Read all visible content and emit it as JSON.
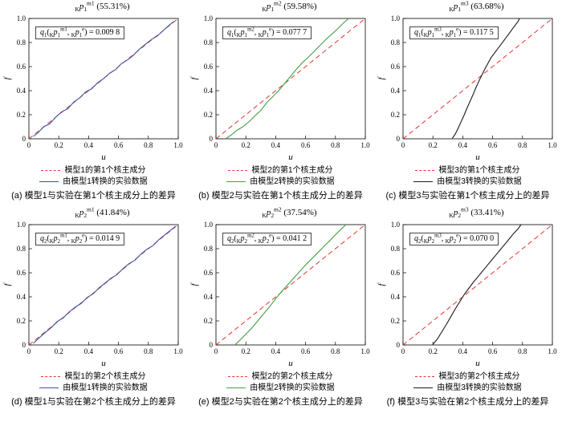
{
  "colors": {
    "reference_red": "#e5352b",
    "model1_blue": "#3a53a4",
    "model2_green": "#43a047",
    "model3_black": "#1a1a1a",
    "axis": "#000000"
  },
  "chart_data": [
    {
      "id": "a",
      "type": "line",
      "title_segments": [
        [
          "K",
          "sub"
        ],
        [
          "p",
          "i"
        ],
        [
          "1",
          "sub"
        ],
        [
          "m1",
          "sup"
        ],
        [
          " (55.31%)"
        ]
      ],
      "annotation_segments": [
        [
          "q",
          "i"
        ],
        [
          "1",
          "sub"
        ],
        [
          "("
        ],
        [
          "K",
          "sub"
        ],
        [
          "p",
          "i"
        ],
        [
          "1",
          "sub"
        ],
        [
          "m1",
          "sup"
        ],
        [
          ", "
        ],
        [
          "K",
          "sub"
        ],
        [
          "p",
          "i"
        ],
        [
          "1",
          "sub"
        ],
        [
          "e",
          "sup"
        ],
        [
          ") = 0.009 8"
        ]
      ],
      "xlabel": "u",
      "ylabel": "f",
      "xlim": [
        0,
        1
      ],
      "ylim": [
        0,
        1
      ],
      "ticks": [
        0,
        0.2,
        0.4,
        0.6,
        0.8,
        1
      ],
      "tick_labels": [
        "0",
        "0.2",
        "0.4",
        "0.6",
        "0.8",
        "1.0"
      ],
      "reference": {
        "name": "模型1的第1个核主成分",
        "color": "#e5352b",
        "dashed": true,
        "points": [
          [
            0,
            0
          ],
          [
            1,
            1
          ]
        ]
      },
      "series": {
        "name": "由模型1转换的实验数据",
        "color": "#3a53a4",
        "dashed": false,
        "points": [
          [
            0.03,
            0.02
          ],
          [
            0.06,
            0.05
          ],
          [
            0.1,
            0.1
          ],
          [
            0.14,
            0.125
          ],
          [
            0.18,
            0.18
          ],
          [
            0.22,
            0.225
          ],
          [
            0.26,
            0.25
          ],
          [
            0.3,
            0.305
          ],
          [
            0.34,
            0.34
          ],
          [
            0.38,
            0.39
          ],
          [
            0.42,
            0.415
          ],
          [
            0.46,
            0.465
          ],
          [
            0.5,
            0.5
          ],
          [
            0.54,
            0.545
          ],
          [
            0.58,
            0.575
          ],
          [
            0.62,
            0.625
          ],
          [
            0.66,
            0.655
          ],
          [
            0.7,
            0.695
          ],
          [
            0.74,
            0.745
          ],
          [
            0.78,
            0.785
          ],
          [
            0.82,
            0.825
          ],
          [
            0.86,
            0.855
          ],
          [
            0.9,
            0.9
          ],
          [
            0.94,
            0.945
          ],
          [
            0.97,
            0.975
          ]
        ]
      },
      "caption": "(a) 模型1与实验在第1个核主成分上的差异"
    },
    {
      "id": "b",
      "type": "line",
      "title_segments": [
        [
          "K",
          "sub"
        ],
        [
          "p",
          "i"
        ],
        [
          "1",
          "sub"
        ],
        [
          "m2",
          "sup"
        ],
        [
          " (59.58%)"
        ]
      ],
      "annotation_segments": [
        [
          "q",
          "i"
        ],
        [
          "1",
          "sub"
        ],
        [
          "("
        ],
        [
          "K",
          "sub"
        ],
        [
          "p",
          "i"
        ],
        [
          "1",
          "sub"
        ],
        [
          "m2",
          "sup"
        ],
        [
          ", "
        ],
        [
          "K",
          "sub"
        ],
        [
          "p",
          "i"
        ],
        [
          "1",
          "sub"
        ],
        [
          "e",
          "sup"
        ],
        [
          ") = 0.077 7"
        ]
      ],
      "xlabel": "u",
      "ylabel": "f",
      "xlim": [
        0,
        1
      ],
      "ylim": [
        0,
        1
      ],
      "ticks": [
        0,
        0.2,
        0.4,
        0.6,
        0.8,
        1
      ],
      "tick_labels": [
        "0",
        "0.2",
        "0.4",
        "0.6",
        "0.8",
        "1.0"
      ],
      "reference": {
        "name": "模型2的第1个核主成分",
        "color": "#e5352b",
        "dashed": true,
        "points": [
          [
            0,
            0
          ],
          [
            1,
            1
          ]
        ]
      },
      "series": {
        "name": "由模型2转换的实验数据",
        "color": "#43a047",
        "dashed": false,
        "points": [
          [
            0.07,
            0.005
          ],
          [
            0.1,
            0.03
          ],
          [
            0.14,
            0.07
          ],
          [
            0.18,
            0.1
          ],
          [
            0.22,
            0.14
          ],
          [
            0.26,
            0.19
          ],
          [
            0.3,
            0.235
          ],
          [
            0.34,
            0.3
          ],
          [
            0.38,
            0.35
          ],
          [
            0.42,
            0.4
          ],
          [
            0.46,
            0.46
          ],
          [
            0.5,
            0.52
          ],
          [
            0.54,
            0.58
          ],
          [
            0.58,
            0.635
          ],
          [
            0.62,
            0.68
          ],
          [
            0.66,
            0.73
          ],
          [
            0.7,
            0.78
          ],
          [
            0.74,
            0.83
          ],
          [
            0.78,
            0.875
          ],
          [
            0.82,
            0.92
          ],
          [
            0.86,
            0.97
          ],
          [
            0.89,
            1.0
          ]
        ]
      },
      "caption": "(b) 模型2与实验在第1个核主成分上的差异"
    },
    {
      "id": "c",
      "type": "line",
      "title_segments": [
        [
          "K",
          "sub"
        ],
        [
          "p",
          "i"
        ],
        [
          "1",
          "sub"
        ],
        [
          "m3",
          "sup"
        ],
        [
          " (63.68%)"
        ]
      ],
      "annotation_segments": [
        [
          "q",
          "i"
        ],
        [
          "1",
          "sub"
        ],
        [
          "("
        ],
        [
          "K",
          "sub"
        ],
        [
          "p",
          "i"
        ],
        [
          "1",
          "sub"
        ],
        [
          "m3",
          "sup"
        ],
        [
          ", "
        ],
        [
          "K",
          "sub"
        ],
        [
          "p",
          "i"
        ],
        [
          "1",
          "sub"
        ],
        [
          "e",
          "sup"
        ],
        [
          ") = 0.117 5"
        ]
      ],
      "xlabel": "u",
      "ylabel": "f",
      "xlim": [
        0,
        1
      ],
      "ylim": [
        0,
        1
      ],
      "ticks": [
        0,
        0.2,
        0.4,
        0.6,
        0.8,
        1
      ],
      "tick_labels": [
        "0",
        "0.2",
        "0.4",
        "0.6",
        "0.8",
        "1.0"
      ],
      "reference": {
        "name": "模型3的第1个核主成分",
        "color": "#e5352b",
        "dashed": true,
        "points": [
          [
            0,
            0
          ],
          [
            1,
            1
          ]
        ]
      },
      "series": {
        "name": "由模型3转换的实验数据",
        "color": "#1a1a1a",
        "dashed": false,
        "points": [
          [
            0.33,
            0.005
          ],
          [
            0.35,
            0.04
          ],
          [
            0.37,
            0.09
          ],
          [
            0.39,
            0.145
          ],
          [
            0.41,
            0.2
          ],
          [
            0.43,
            0.26
          ],
          [
            0.45,
            0.315
          ],
          [
            0.47,
            0.37
          ],
          [
            0.49,
            0.43
          ],
          [
            0.51,
            0.485
          ],
          [
            0.53,
            0.535
          ],
          [
            0.55,
            0.585
          ],
          [
            0.57,
            0.63
          ],
          [
            0.59,
            0.675
          ],
          [
            0.62,
            0.725
          ],
          [
            0.65,
            0.775
          ],
          [
            0.68,
            0.825
          ],
          [
            0.71,
            0.875
          ],
          [
            0.74,
            0.925
          ],
          [
            0.77,
            0.975
          ],
          [
            0.78,
            1.0
          ]
        ]
      },
      "caption": "(c) 模型3与实验在第1个核主成分上的差异"
    },
    {
      "id": "d",
      "type": "line",
      "title_segments": [
        [
          "K",
          "sub"
        ],
        [
          "p",
          "i"
        ],
        [
          "2",
          "sub"
        ],
        [
          "m1",
          "sup"
        ],
        [
          " (41.84%)"
        ]
      ],
      "annotation_segments": [
        [
          "q",
          "i"
        ],
        [
          "2",
          "sub"
        ],
        [
          "("
        ],
        [
          "K",
          "sub"
        ],
        [
          "p",
          "i"
        ],
        [
          "2",
          "sub"
        ],
        [
          "m1",
          "sup"
        ],
        [
          ", "
        ],
        [
          "K",
          "sub"
        ],
        [
          "p",
          "i"
        ],
        [
          "2",
          "sub"
        ],
        [
          "e",
          "sup"
        ],
        [
          ") = 0.014 9"
        ]
      ],
      "xlabel": "u",
      "ylabel": "f",
      "xlim": [
        0,
        1
      ],
      "ylim": [
        0,
        1
      ],
      "ticks": [
        0,
        0.2,
        0.4,
        0.6,
        0.8,
        1
      ],
      "tick_labels": [
        "0",
        "0.2",
        "0.4",
        "0.6",
        "0.8",
        "1.0"
      ],
      "reference": {
        "name": "模型1的第2个核主成分",
        "color": "#e5352b",
        "dashed": true,
        "points": [
          [
            0,
            0
          ],
          [
            1,
            1
          ]
        ]
      },
      "series": {
        "name": "由模型1转换的实验数据",
        "color": "#3a53a4",
        "dashed": false,
        "points": [
          [
            0.03,
            0.015
          ],
          [
            0.07,
            0.06
          ],
          [
            0.11,
            0.105
          ],
          [
            0.15,
            0.145
          ],
          [
            0.19,
            0.195
          ],
          [
            0.23,
            0.225
          ],
          [
            0.27,
            0.275
          ],
          [
            0.31,
            0.315
          ],
          [
            0.35,
            0.345
          ],
          [
            0.39,
            0.395
          ],
          [
            0.43,
            0.425
          ],
          [
            0.47,
            0.475
          ],
          [
            0.51,
            0.515
          ],
          [
            0.55,
            0.555
          ],
          [
            0.59,
            0.585
          ],
          [
            0.63,
            0.635
          ],
          [
            0.67,
            0.675
          ],
          [
            0.71,
            0.705
          ],
          [
            0.75,
            0.755
          ],
          [
            0.79,
            0.795
          ],
          [
            0.83,
            0.825
          ],
          [
            0.87,
            0.875
          ],
          [
            0.91,
            0.915
          ],
          [
            0.95,
            0.955
          ],
          [
            0.98,
            0.985
          ]
        ]
      },
      "caption": "(d) 模型1与实验在第2个核主成分上的差异"
    },
    {
      "id": "e",
      "type": "line",
      "title_segments": [
        [
          "K",
          "sub"
        ],
        [
          "p",
          "i"
        ],
        [
          "2",
          "sub"
        ],
        [
          "m2",
          "sup"
        ],
        [
          " (37.54%)"
        ]
      ],
      "annotation_segments": [
        [
          "q",
          "i"
        ],
        [
          "2",
          "sub"
        ],
        [
          "("
        ],
        [
          "K",
          "sub"
        ],
        [
          "p",
          "i"
        ],
        [
          "2",
          "sub"
        ],
        [
          "m2",
          "sup"
        ],
        [
          ", "
        ],
        [
          "K",
          "sub"
        ],
        [
          "p",
          "i"
        ],
        [
          "2",
          "sub"
        ],
        [
          "e",
          "sup"
        ],
        [
          ") = 0.041 2"
        ]
      ],
      "xlabel": "u",
      "ylabel": "f",
      "xlim": [
        0,
        1
      ],
      "ylim": [
        0,
        1
      ],
      "ticks": [
        0,
        0.2,
        0.4,
        0.6,
        0.8,
        1
      ],
      "tick_labels": [
        "0",
        "0.2",
        "0.4",
        "0.6",
        "0.8",
        "1.0"
      ],
      "reference": {
        "name": "模型2的第2个核主成分",
        "color": "#e5352b",
        "dashed": true,
        "points": [
          [
            0,
            0
          ],
          [
            1,
            1
          ]
        ]
      },
      "series": {
        "name": "由模型2转换的实验数据",
        "color": "#43a047",
        "dashed": false,
        "points": [
          [
            0.13,
            0.005
          ],
          [
            0.16,
            0.04
          ],
          [
            0.2,
            0.09
          ],
          [
            0.24,
            0.14
          ],
          [
            0.28,
            0.2
          ],
          [
            0.32,
            0.26
          ],
          [
            0.36,
            0.32
          ],
          [
            0.4,
            0.385
          ],
          [
            0.44,
            0.445
          ],
          [
            0.48,
            0.5
          ],
          [
            0.52,
            0.555
          ],
          [
            0.56,
            0.61
          ],
          [
            0.6,
            0.665
          ],
          [
            0.64,
            0.715
          ],
          [
            0.68,
            0.765
          ],
          [
            0.72,
            0.815
          ],
          [
            0.76,
            0.865
          ],
          [
            0.8,
            0.915
          ],
          [
            0.84,
            0.965
          ],
          [
            0.87,
            1.0
          ]
        ]
      },
      "caption": "(e) 模型2与实验在第2个核主成分上的差异"
    },
    {
      "id": "f",
      "type": "line",
      "title_segments": [
        [
          "K",
          "sub"
        ],
        [
          "p",
          "i"
        ],
        [
          "2",
          "sub"
        ],
        [
          "m3",
          "sup"
        ],
        [
          " (33.41%)"
        ]
      ],
      "annotation_segments": [
        [
          "q",
          "i"
        ],
        [
          "2",
          "sub"
        ],
        [
          "("
        ],
        [
          "K",
          "sub"
        ],
        [
          "p",
          "i"
        ],
        [
          "2",
          "sub"
        ],
        [
          "m3",
          "sup"
        ],
        [
          ", "
        ],
        [
          "K",
          "sub"
        ],
        [
          "p",
          "i"
        ],
        [
          "2",
          "sub"
        ],
        [
          "e",
          "sup"
        ],
        [
          ") = 0.070 0"
        ]
      ],
      "xlabel": "u",
      "ylabel": "f",
      "xlim": [
        0,
        1
      ],
      "ylim": [
        0,
        1
      ],
      "ticks": [
        0,
        0.2,
        0.4,
        0.6,
        0.8,
        1
      ],
      "tick_labels": [
        "0",
        "0.2",
        "0.4",
        "0.6",
        "0.8",
        "1.0"
      ],
      "reference": {
        "name": "模型3的第2个核主成分",
        "color": "#e5352b",
        "dashed": true,
        "points": [
          [
            0,
            0
          ],
          [
            1,
            1
          ]
        ]
      },
      "series": {
        "name": "由模型3转换的实验数据",
        "color": "#1a1a1a",
        "dashed": false,
        "points": [
          [
            0.2,
            0.005
          ],
          [
            0.23,
            0.05
          ],
          [
            0.26,
            0.11
          ],
          [
            0.29,
            0.17
          ],
          [
            0.32,
            0.235
          ],
          [
            0.35,
            0.3
          ],
          [
            0.38,
            0.36
          ],
          [
            0.41,
            0.42
          ],
          [
            0.44,
            0.47
          ],
          [
            0.47,
            0.52
          ],
          [
            0.5,
            0.565
          ],
          [
            0.53,
            0.61
          ],
          [
            0.56,
            0.655
          ],
          [
            0.59,
            0.7
          ],
          [
            0.62,
            0.745
          ],
          [
            0.65,
            0.79
          ],
          [
            0.68,
            0.835
          ],
          [
            0.71,
            0.88
          ],
          [
            0.74,
            0.925
          ],
          [
            0.77,
            0.965
          ],
          [
            0.79,
            1.0
          ]
        ]
      },
      "caption": "(f) 模型3与实验在第2个核主成分上的差异"
    }
  ]
}
